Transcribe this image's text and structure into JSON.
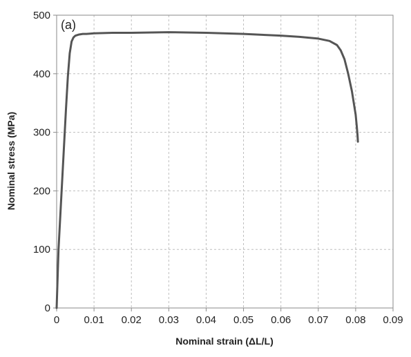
{
  "chart_data": {
    "type": "line",
    "panel_label": "(a)",
    "xlabel": "Nominal strain (ΔL/L)",
    "ylabel": "Nominal  stress (MPa)",
    "xlim": [
      0,
      0.09
    ],
    "ylim": [
      0,
      500
    ],
    "x_ticks": [
      0,
      0.01,
      0.02,
      0.03,
      0.04,
      0.05,
      0.06,
      0.07,
      0.08,
      0.09
    ],
    "x_tick_labels": [
      "0",
      "0.01",
      "0.02",
      "0.03",
      "0.04",
      "0.05",
      "0.06",
      "0.07",
      "0.08",
      "0.09"
    ],
    "y_ticks": [
      0,
      100,
      200,
      300,
      400,
      500
    ],
    "y_tick_labels": [
      "0",
      "100",
      "200",
      "300",
      "400",
      "500"
    ],
    "grid": true,
    "series": [
      {
        "color": "#555555",
        "x": [
          0,
          0.0005,
          0.001,
          0.0015,
          0.002,
          0.0025,
          0.003,
          0.0035,
          0.004,
          0.0045,
          0.005,
          0.006,
          0.007,
          0.008,
          0.01,
          0.015,
          0.02,
          0.03,
          0.04,
          0.05,
          0.06,
          0.065,
          0.07,
          0.073,
          0.075,
          0.076,
          0.077,
          0.078,
          0.079,
          0.0795,
          0.08,
          0.0803,
          0.0805,
          0.0806
        ],
        "y": [
          0,
          100,
          160,
          220,
          280,
          340,
          395,
          435,
          455,
          462,
          465,
          467,
          468,
          468,
          469,
          470,
          470,
          471,
          470,
          468,
          465,
          463,
          460,
          456,
          449,
          440,
          425,
          400,
          370,
          350,
          330,
          310,
          295,
          284
        ]
      }
    ]
  }
}
